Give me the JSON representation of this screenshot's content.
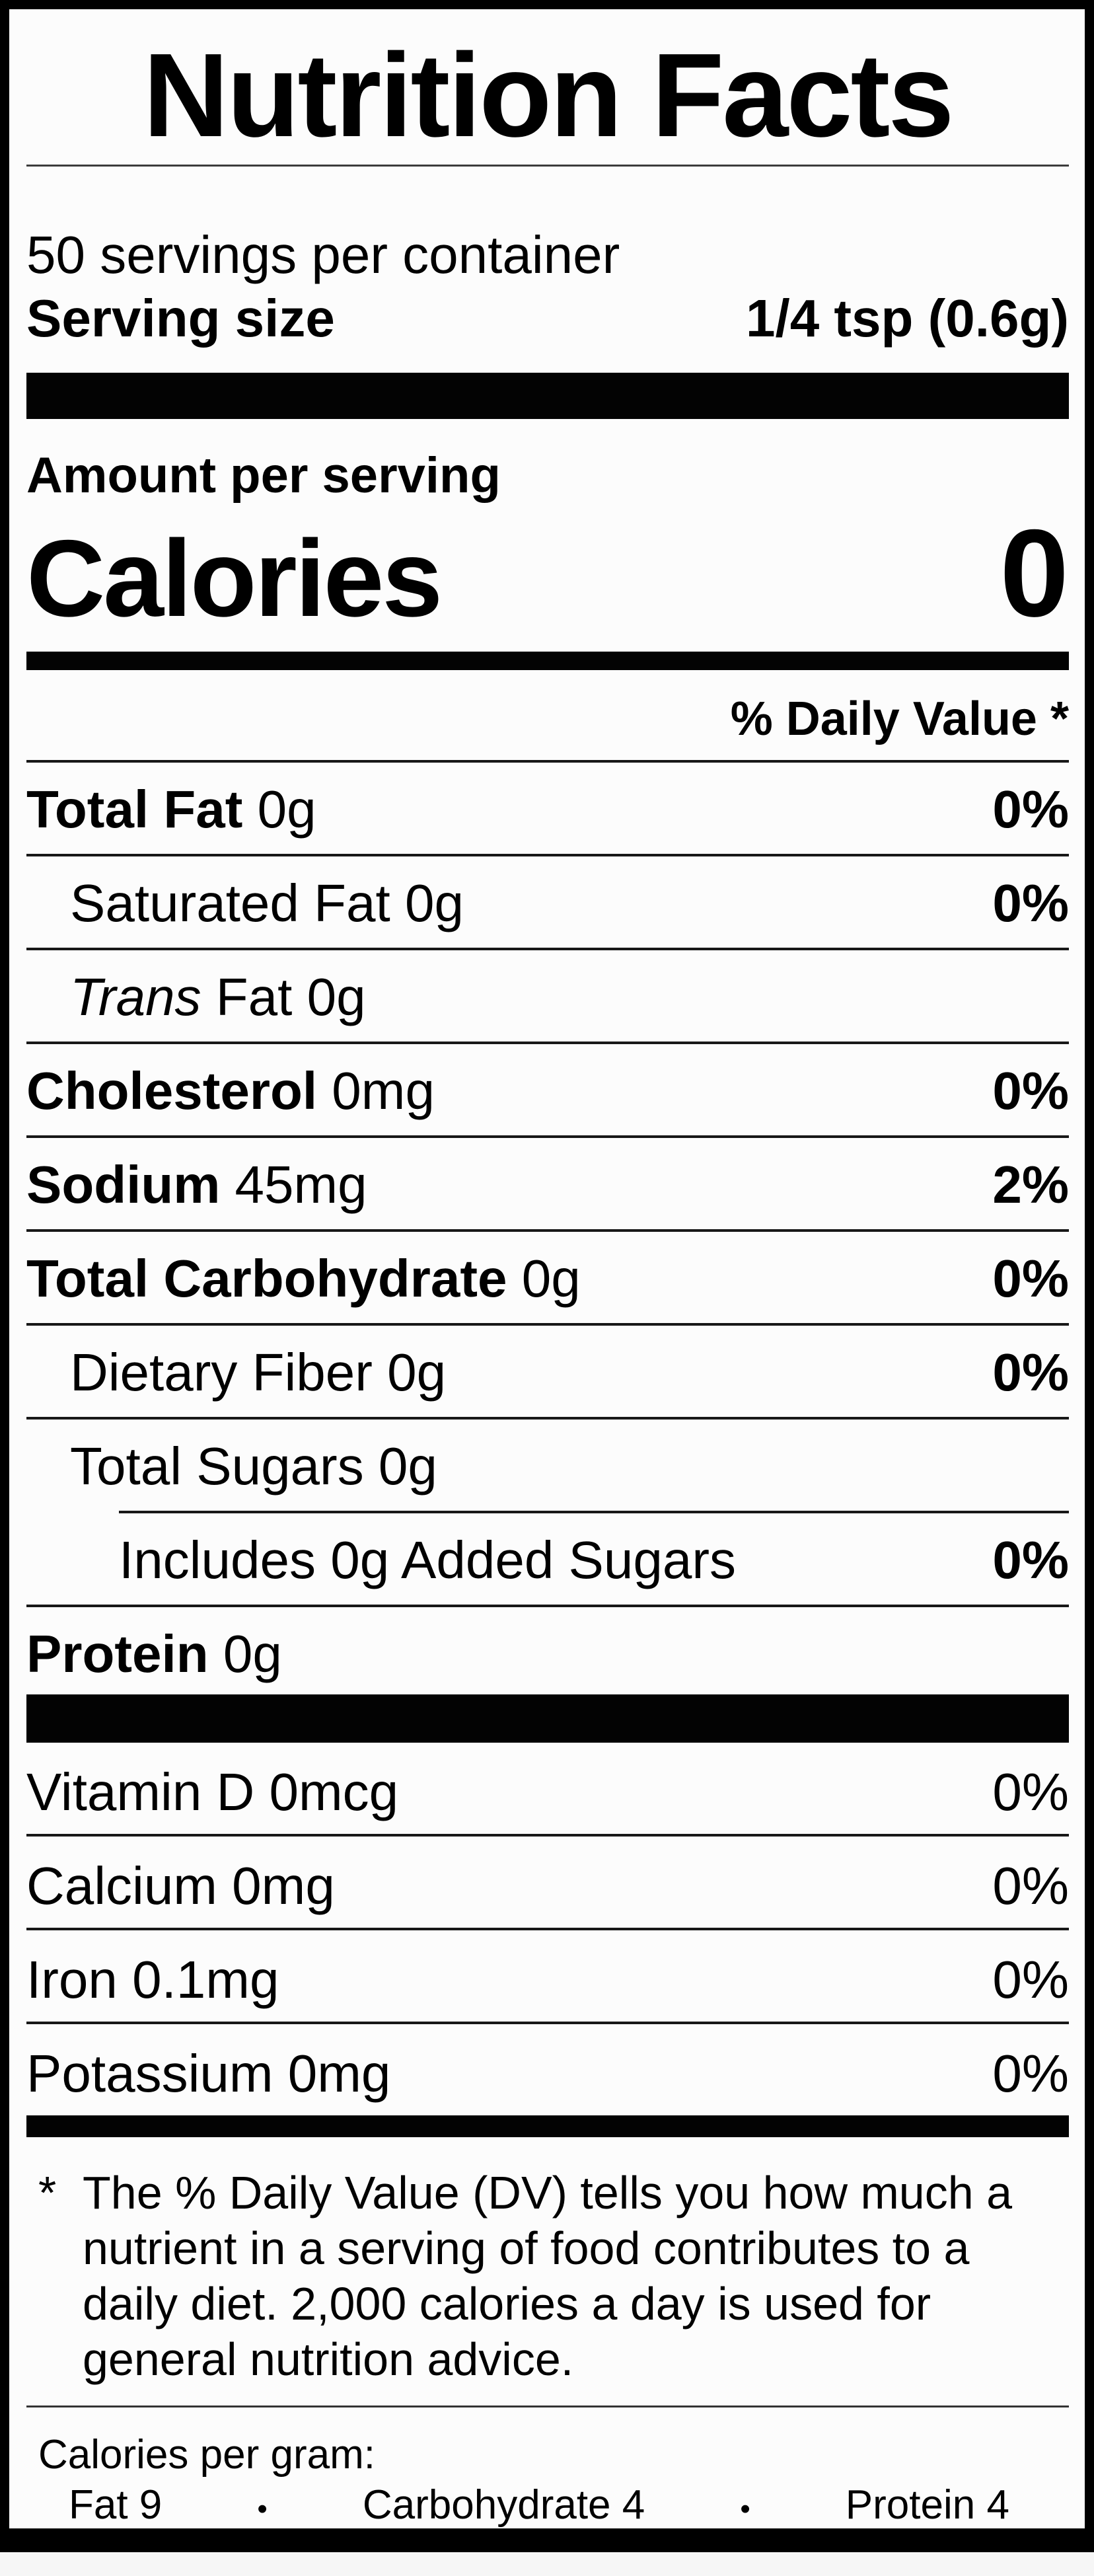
{
  "title": "Nutrition Facts",
  "servings_per_container": "50 servings per container",
  "serving_size": {
    "label": "Serving size",
    "value": "1/4 tsp (0.6g)"
  },
  "amount_per_serving": "Amount per serving",
  "calories": {
    "label": "Calories",
    "value": "0"
  },
  "daily_value_header": "% Daily Value *",
  "nutrients": [
    {
      "lead": "Total Fat",
      "lead_style": "bold",
      "rest": "0g",
      "dv": "0%",
      "dv_bold": true,
      "indent": 0,
      "rule": "full"
    },
    {
      "lead": "Saturated Fat",
      "lead_style": "regular",
      "rest": "0g",
      "dv": "0%",
      "dv_bold": true,
      "indent": 1,
      "rule": "full"
    },
    {
      "lead": "Trans",
      "lead_style": "italic",
      "rest": "Fat 0g",
      "dv": "",
      "dv_bold": false,
      "indent": 1,
      "rule": "full"
    },
    {
      "lead": "Cholesterol",
      "lead_style": "bold",
      "rest": "0mg",
      "dv": "0%",
      "dv_bold": true,
      "indent": 0,
      "rule": "full"
    },
    {
      "lead": "Sodium",
      "lead_style": "bold",
      "rest": "45mg",
      "dv": "2%",
      "dv_bold": true,
      "indent": 0,
      "rule": "full"
    },
    {
      "lead": "Total Carbohydrate",
      "lead_style": "bold",
      "rest": "0g",
      "dv": "0%",
      "dv_bold": true,
      "indent": 0,
      "rule": "full"
    },
    {
      "lead": "Dietary Fiber",
      "lead_style": "regular",
      "rest": "0g",
      "dv": "0%",
      "dv_bold": true,
      "indent": 1,
      "rule": "full"
    },
    {
      "lead": "Total Sugars",
      "lead_style": "regular",
      "rest": "0g",
      "dv": "",
      "dv_bold": false,
      "indent": 1,
      "rule": "partial"
    },
    {
      "lead": "Includes 0g Added Sugars",
      "lead_style": "regular",
      "rest": "",
      "dv": "0%",
      "dv_bold": true,
      "indent": 2,
      "rule": "full"
    },
    {
      "lead": "Protein",
      "lead_style": "bold",
      "rest": "0g",
      "dv": "",
      "dv_bold": false,
      "indent": 0,
      "rule": "none"
    }
  ],
  "vitamins": [
    {
      "lead": "Vitamin D",
      "lead_style": "regular",
      "rest": "0mcg",
      "dv": "0%",
      "dv_bold": false,
      "indent": 0,
      "rule": "full"
    },
    {
      "lead": "Calcium",
      "lead_style": "regular",
      "rest": "0mg",
      "dv": "0%",
      "dv_bold": false,
      "indent": 0,
      "rule": "full"
    },
    {
      "lead": "Iron",
      "lead_style": "regular",
      "rest": "0.1mg",
      "dv": "0%",
      "dv_bold": false,
      "indent": 0,
      "rule": "full"
    },
    {
      "lead": "Potassium",
      "lead_style": "regular",
      "rest": "0mg",
      "dv": "0%",
      "dv_bold": false,
      "indent": 0,
      "rule": "none"
    }
  ],
  "footnote": {
    "marker": "*",
    "lines": [
      "The % Daily Value (DV) tells you how much a",
      "nutrient in a serving of food contributes to a",
      "daily diet. 2,000 calories a day is used for",
      "general nutrition advice."
    ]
  },
  "calories_per_gram": {
    "label": "Calories per gram:",
    "bullet": "•",
    "items": [
      "Fat 9",
      "Carbohydrate 4",
      "Protein 4"
    ]
  },
  "colors": {
    "ink": "#000000",
    "paper": "#fcfcfc",
    "hairline": "#181818"
  }
}
